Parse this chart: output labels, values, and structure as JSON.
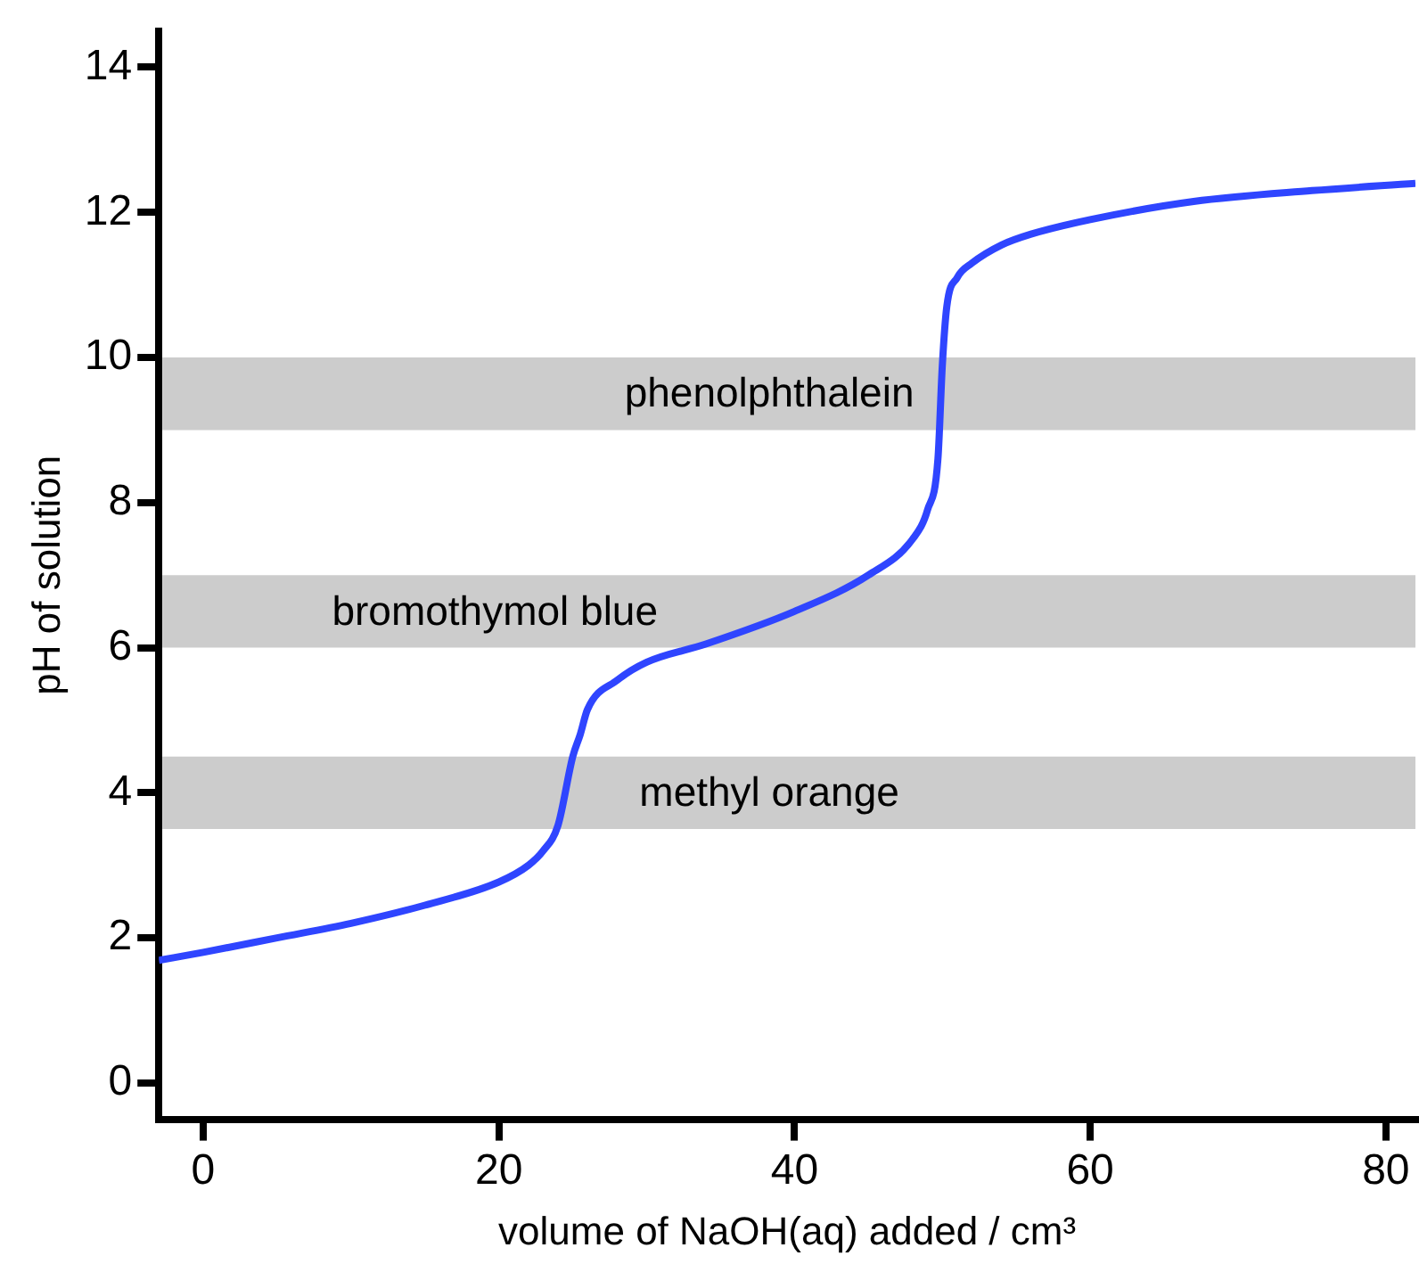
{
  "chart_data": {
    "type": "line",
    "xlabel": "volume of NaOH(aq) added / cm³",
    "ylabel": "pH of solution",
    "x": [
      -3,
      0,
      5,
      10,
      15,
      20,
      22,
      23,
      24,
      25,
      25.5,
      26,
      28,
      30,
      34,
      40,
      45,
      48,
      49,
      49.7,
      50,
      50.3,
      51,
      52,
      54,
      56,
      60,
      67,
      75,
      82
    ],
    "series": [
      {
        "color": "#2f45ff",
        "values": [
          1.69,
          1.8,
          2.0,
          2.2,
          2.45,
          2.77,
          3.0,
          3.2,
          3.55,
          4.5,
          4.8,
          5.15,
          5.55,
          5.8,
          6.05,
          6.5,
          7.0,
          7.5,
          7.9,
          8.6,
          9.9,
          10.7,
          11.1,
          11.3,
          11.55,
          11.7,
          11.9,
          12.15,
          12.3,
          12.4
        ]
      }
    ],
    "xlim": [
      -3,
      82
    ],
    "ylim": [
      -0.5,
      14.5
    ],
    "xticks": [
      0,
      20,
      40,
      60,
      80
    ],
    "yticks": [
      0,
      2,
      4,
      6,
      8,
      10,
      12,
      14
    ],
    "grid": false,
    "legend": false,
    "marker": "none",
    "line_style": "solid",
    "bands": [
      {
        "axis": "y",
        "from": 9,
        "to": 10,
        "label": "phenolphthalein",
        "color": "#cccccc"
      },
      {
        "axis": "y",
        "from": 6,
        "to": 7,
        "label": "bromothymol blue",
        "color": "#cccccc"
      },
      {
        "axis": "y",
        "from": 3.5,
        "to": 4.5,
        "label": "methyl orange",
        "color": "#cccccc"
      }
    ]
  }
}
